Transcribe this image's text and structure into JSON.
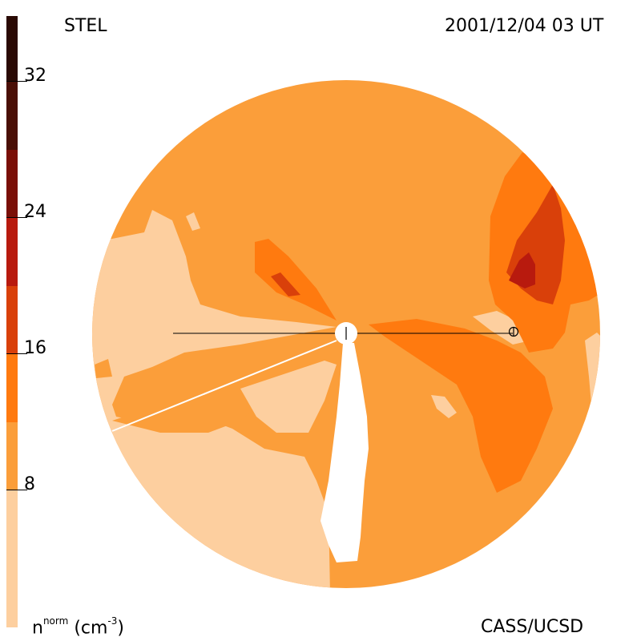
{
  "header": {
    "left_title": "STEL",
    "right_title": "2001/12/04 03 UT"
  },
  "footer": {
    "units_base": "n",
    "units_sup": "norm",
    "units_paren": "(cm",
    "units_exp": "-3",
    "units_close": ")",
    "credit": "CASS/UCSD"
  },
  "colorbar": {
    "ticks": [
      "32",
      "24",
      "16",
      "8"
    ],
    "levels": [
      {
        "color": "#2a0a04"
      },
      {
        "color": "#4a0f06"
      },
      {
        "color": "#7a0f07"
      },
      {
        "color": "#b81a0e"
      },
      {
        "color": "#d9400a"
      },
      {
        "color": "#ff7a0f"
      },
      {
        "color": "#fb9e3a"
      },
      {
        "color": "#fdcf9f"
      }
    ]
  },
  "colors": {
    "light": "#fdcf9f",
    "base": "#fb9e3a",
    "mid": "#ff7a0f",
    "high": "#d9400a",
    "peak": "#b81a0e"
  }
}
